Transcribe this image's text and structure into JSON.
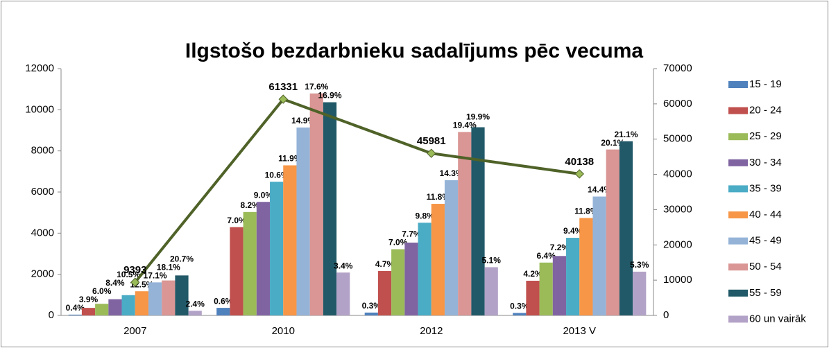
{
  "chart_data": {
    "type": "bar",
    "title": "Ilgstošo bezdarbnieku sadalījums pēc vecuma",
    "categories": [
      "2007",
      "2010",
      "2012",
      "2013 V"
    ],
    "ylim": [
      0,
      12000
    ],
    "yticks": [
      0,
      2000,
      4000,
      6000,
      8000,
      10000,
      12000
    ],
    "y2lim": [
      0,
      70000
    ],
    "y2ticks": [
      0,
      10000,
      20000,
      30000,
      40000,
      50000,
      60000,
      70000
    ],
    "grid": false,
    "legend": "right",
    "series": [
      {
        "name": "15 - 19",
        "color": "#4f81bd",
        "values": [
          38,
          368,
          138,
          120
        ],
        "percent_labels": [
          "0.4%",
          "0.6%",
          "0.3%",
          "0.3%"
        ]
      },
      {
        "name": "20 - 24",
        "color": "#c0504d",
        "values": [
          366,
          4293,
          2161,
          1686
        ],
        "percent_labels": [
          "3.9%",
          "7.0%",
          "4.7%",
          "4.2%"
        ]
      },
      {
        "name": "25 - 29",
        "color": "#9bbb59",
        "values": [
          564,
          5029,
          3219,
          2569
        ],
        "percent_labels": [
          "6.0%",
          "8.2%",
          "7.0%",
          "6.4%"
        ]
      },
      {
        "name": "30 - 34",
        "color": "#8064a2",
        "values": [
          789,
          5520,
          3541,
          2890
        ],
        "percent_labels": [
          "8.4%",
          "9.0%",
          "7.7%",
          "7.2%"
        ]
      },
      {
        "name": "35 - 39",
        "color": "#4bacc6",
        "values": [
          986,
          6501,
          4506,
          3773
        ],
        "percent_labels": [
          "10.5%",
          "10.6%",
          "9.8%",
          "9.4%"
        ]
      },
      {
        "name": "40 - 44",
        "color": "#f79646",
        "values": [
          1174,
          7298,
          5426,
          4736
        ],
        "percent_labels": [
          "12.5%",
          "11.9%",
          "11.8%",
          "11.8%"
        ]
      },
      {
        "name": "45 - 49",
        "color": "#95b3d7",
        "values": [
          1606,
          9138,
          6575,
          5780
        ],
        "percent_labels": [
          "17.1%",
          "14.9%",
          "14.3%",
          "14.4%"
        ]
      },
      {
        "name": "50 - 54",
        "color": "#d99694",
        "values": [
          1700,
          10794,
          8920,
          8068
        ],
        "percent_labels": [
          "18.1%",
          "17.6%",
          "19.4%",
          "20.1%"
        ]
      },
      {
        "name": "55 - 59",
        "color": "#215968",
        "values": [
          1944,
          10365,
          9150,
          8469
        ],
        "percent_labels": [
          "20.7%",
          "16.9%",
          "19.9%",
          "21.1%"
        ]
      },
      {
        "name": "60 un vairāk",
        "color": "#b3a2c7",
        "values": [
          225,
          2085,
          2345,
          2127
        ],
        "percent_labels": [
          "2.4%",
          "3.4%",
          "5.1%",
          "5.3%"
        ]
      }
    ],
    "line": {
      "axis": "y2",
      "color": "#4f6228",
      "marker_color": "#9bbb59",
      "values": [
        9393,
        61331,
        45981,
        40138
      ]
    }
  }
}
